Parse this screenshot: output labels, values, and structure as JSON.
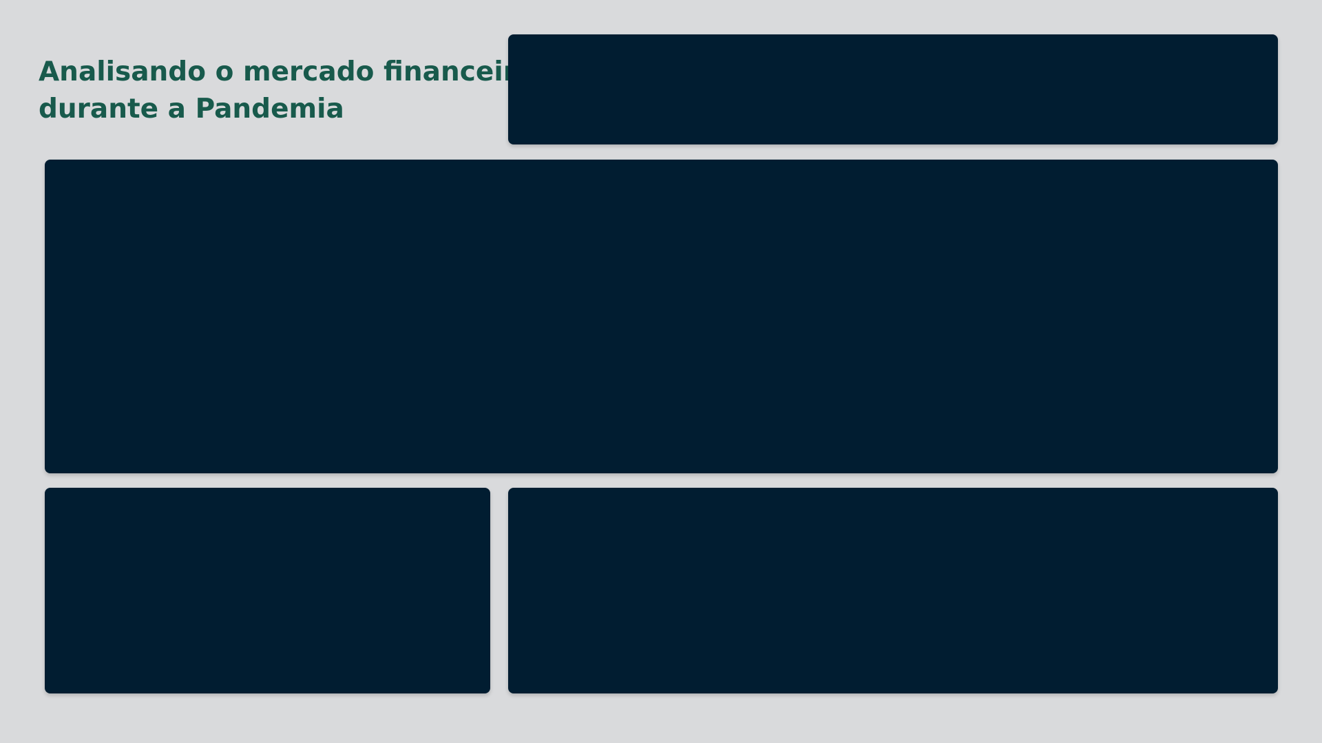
{
  "header": {
    "title_line_1": "Analisando o mercado financeiro",
    "title_line_2": "durante a Pandemia"
  },
  "colors": {
    "background": "#d9dadc",
    "title_text": "#185a4c",
    "panel": "#011d31"
  }
}
